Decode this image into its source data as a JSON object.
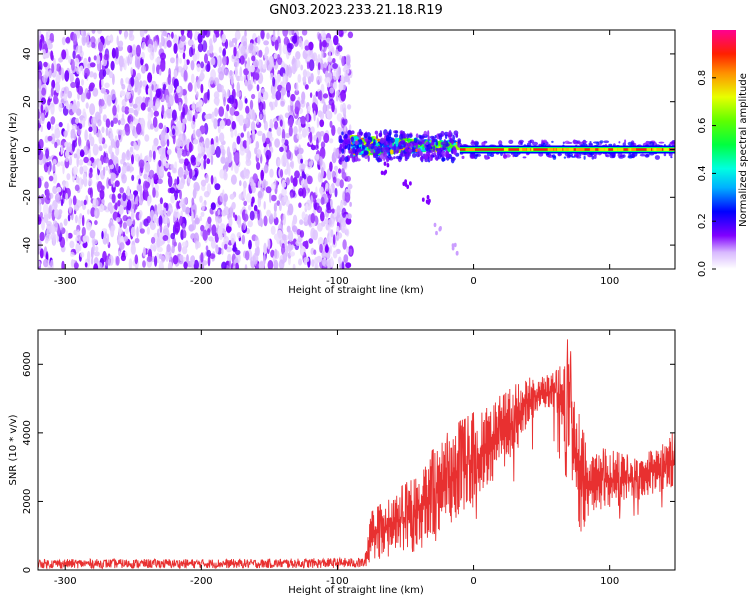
{
  "figure_title": "GN03.2023.233.21.18.R19",
  "chart_data": [
    {
      "type": "heatmap",
      "title": "",
      "xlabel": "Height of straight line (km)",
      "ylabel": "Frequency (Hz)",
      "xlim": [
        -320,
        148
      ],
      "ylim": [
        -50,
        50
      ],
      "xticks": [
        -300,
        -200,
        -100,
        0,
        100
      ],
      "yticks": [
        -40,
        -20,
        0,
        20,
        40
      ],
      "colorbar": {
        "label": "Normalized spectral amplitude",
        "range": [
          0,
          1
        ],
        "ticks": [
          0.0,
          0.2,
          0.4,
          0.6,
          0.8
        ],
        "colormap": "purple-blue-cyan-green-yellow-red-magenta"
      },
      "regions": [
        {
          "name": "noise",
          "x_range": [
            -320,
            -90
          ],
          "freq_range": [
            -50,
            50
          ],
          "amplitude_range": [
            0.0,
            0.15
          ]
        },
        {
          "name": "signal-onset",
          "x_range": [
            -90,
            -10
          ],
          "center_freq": 1.5,
          "amplitude_peak": 0.85
        },
        {
          "name": "steady-tone",
          "x_range": [
            -10,
            148
          ],
          "center_freq": 0,
          "amplitude_peak": 0.9
        }
      ],
      "streak": [
        {
          "x": -65,
          "freq": -8
        },
        {
          "x": -50,
          "freq": -14
        },
        {
          "x": -35,
          "freq": -22
        },
        {
          "x": -25,
          "freq": -33
        },
        {
          "x": -15,
          "freq": -42
        }
      ]
    },
    {
      "type": "line",
      "title": "",
      "xlabel": "Height of straight line (km)",
      "ylabel": "SNR (10 * v/v)",
      "xlim": [
        -320,
        148
      ],
      "ylim": [
        0,
        7000
      ],
      "xticks": [
        -300,
        -200,
        -100,
        0,
        100
      ],
      "yticks": [
        0,
        2000,
        4000,
        6000
      ],
      "color": "#e83030",
      "envelope": {
        "x": [
          -320,
          -160,
          -80,
          -75,
          -60,
          -45,
          -30,
          -15,
          0,
          10,
          20,
          30,
          40,
          50,
          60,
          65,
          70,
          75,
          80,
          90,
          100,
          110,
          120,
          130,
          140,
          148
        ],
        "low": [
          50,
          50,
          60,
          250,
          400,
          650,
          1000,
          1400,
          1750,
          2300,
          2850,
          3250,
          4300,
          4600,
          4700,
          3700,
          3200,
          1600,
          900,
          1700,
          1800,
          1900,
          2000,
          2200,
          2300,
          2300
        ],
        "high": [
          320,
          320,
          360,
          1700,
          2200,
          2700,
          3500,
          4200,
          4600,
          4800,
          5100,
          5400,
          5600,
          5700,
          5800,
          6000,
          6900,
          5000,
          4100,
          3600,
          3500,
          3400,
          3300,
          3500,
          3800,
          4100
        ]
      }
    }
  ]
}
